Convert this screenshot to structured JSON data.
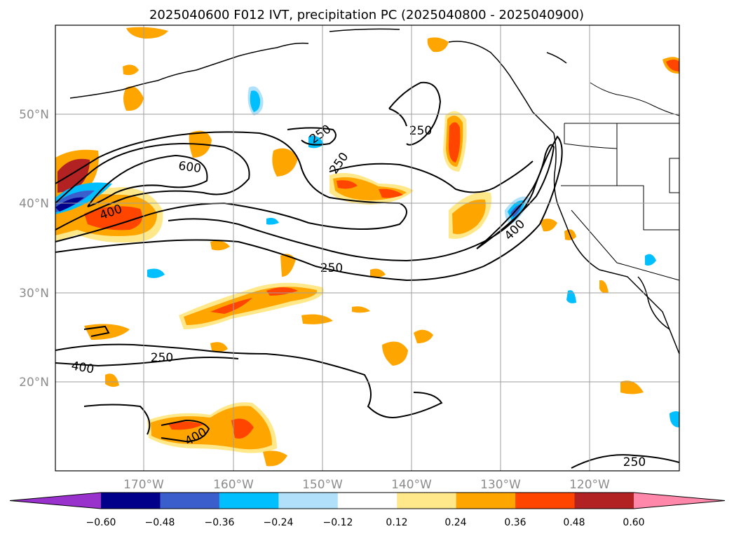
{
  "title": "2025040600 F012 IVT, precipitation PC (2025040800 - 2025040900)",
  "map": {
    "lat_labels": [
      "50°N",
      "40°N",
      "30°N",
      "20°N"
    ],
    "lon_labels": [
      "170°W",
      "160°W",
      "150°W",
      "140°W",
      "130°W",
      "120°W"
    ],
    "lat_range": [
      10,
      60
    ],
    "lon_range": [
      -180,
      -110
    ],
    "grid": true
  },
  "contour_labels": [
    "600",
    "400",
    "250",
    "250",
    "250",
    "250",
    "400",
    "250",
    "400",
    "400",
    "250"
  ],
  "colorbar": {
    "ticks": [
      "−0.60",
      "−0.48",
      "−0.36",
      "−0.24",
      "−0.12",
      "0.12",
      "0.24",
      "0.36",
      "0.48",
      "0.60"
    ],
    "levels": [
      -0.6,
      -0.48,
      -0.36,
      -0.24,
      -0.12,
      0.12,
      0.24,
      0.36,
      0.48,
      0.6
    ],
    "colors": [
      "#9932cc",
      "#00008b",
      "#3a5fcd",
      "#00bfff",
      "#b0e0fa",
      "#ffffff",
      "#ffe88a",
      "#ffa500",
      "#ff4500",
      "#b22222",
      "#ff88aa"
    ],
    "extend": "both"
  }
}
